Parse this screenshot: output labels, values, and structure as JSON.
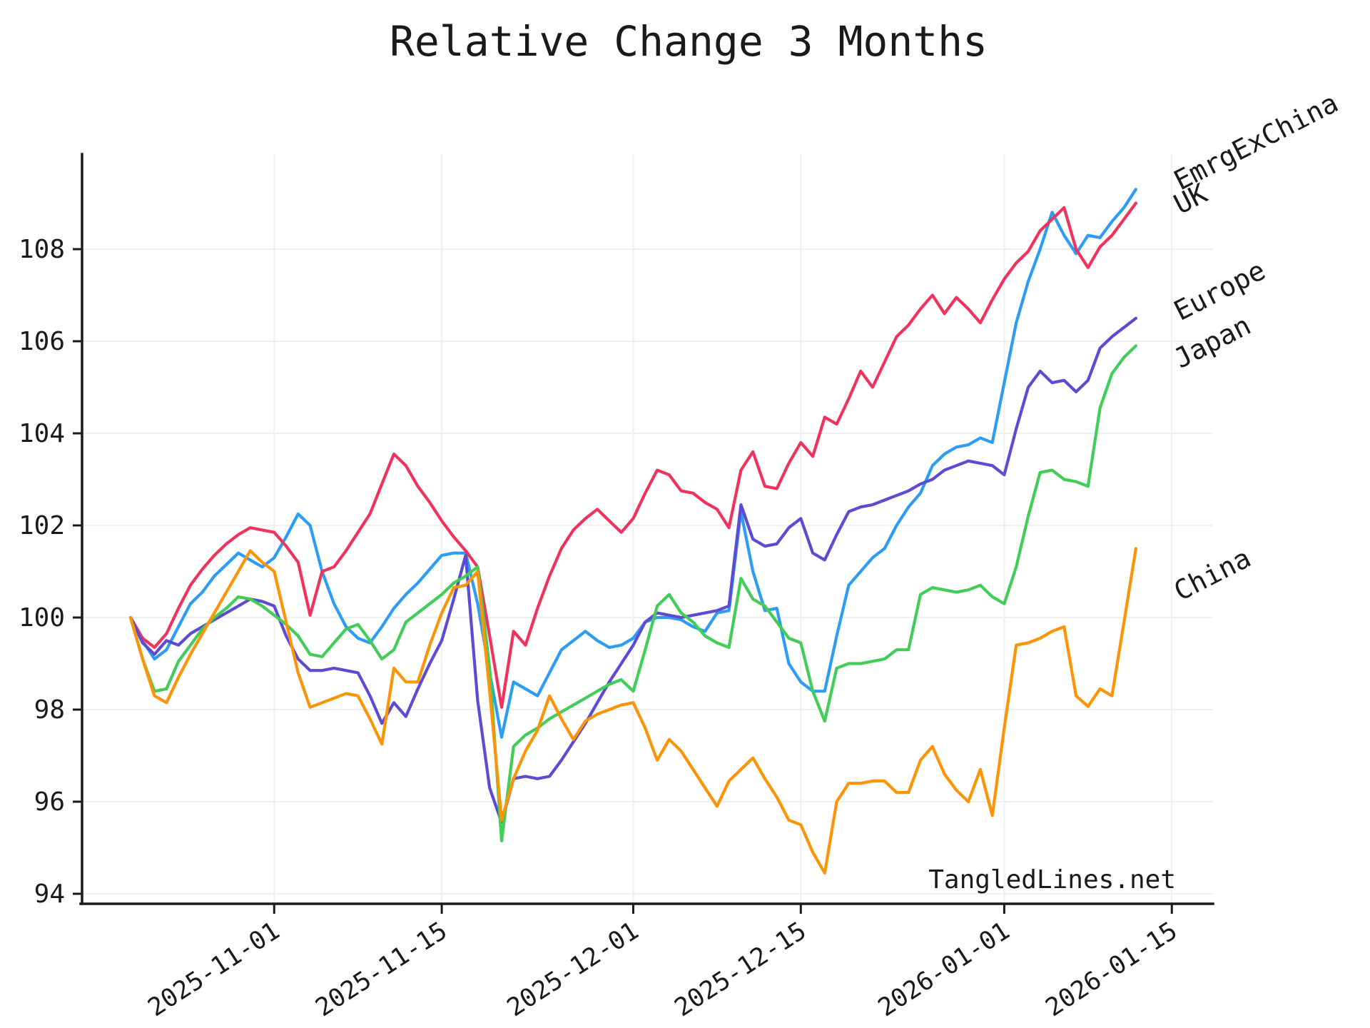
{
  "title": "Relative Change 3 Months",
  "watermark": "TangledLines.net",
  "chart_data": {
    "type": "line",
    "title": "Relative Change 3 Months",
    "xlabel": "",
    "ylabel": "",
    "grid": true,
    "legend_position": "labels-at-line-ends-right",
    "x_axis": {
      "start_date": "2025-10-20",
      "unit": "calendar-days",
      "tick_labels": [
        "2025-11-01",
        "2025-11-15",
        "2025-12-01",
        "2025-12-15",
        "2026-01-01",
        "2026-01-15"
      ],
      "tick_day_index": [
        12,
        26,
        42,
        56,
        73,
        87
      ]
    },
    "y_axis": {
      "ticks": [
        94,
        96,
        98,
        100,
        102,
        104,
        106,
        108
      ],
      "range": [
        93.74,
        110.06
      ]
    },
    "series": [
      {
        "name": "EmrgExChina",
        "color": "#2D9CF4",
        "values": [
          100.0,
          99.5,
          99.1,
          99.3,
          99.8,
          100.3,
          100.55,
          100.9,
          101.15,
          101.4,
          101.25,
          101.1,
          101.3,
          101.75,
          102.25,
          102.0,
          101.0,
          100.3,
          99.8,
          99.55,
          99.45,
          99.8,
          100.2,
          100.5,
          100.75,
          101.05,
          101.35,
          101.4,
          101.4,
          100.3,
          98.8,
          97.4,
          98.6,
          98.45,
          98.3,
          98.8,
          99.3,
          99.5,
          99.7,
          99.5,
          99.35,
          99.4,
          99.55,
          99.9,
          100.0,
          100.0,
          99.95,
          99.8,
          99.7,
          100.1,
          100.15,
          102.3,
          101.0,
          100.15,
          100.2,
          99.0,
          98.6,
          98.4,
          98.4,
          99.6,
          100.7,
          101.0,
          101.3,
          101.5,
          102.0,
          102.4,
          102.7,
          103.3,
          103.55,
          103.7,
          103.75,
          103.9,
          103.8,
          105.1,
          106.4,
          107.3,
          108.0,
          108.8,
          108.3,
          107.9,
          108.3,
          108.25,
          108.6,
          108.9,
          109.3
        ]
      },
      {
        "name": "UK",
        "color": "#F0335D",
        "values": [
          100.0,
          99.55,
          99.35,
          99.65,
          100.2,
          100.7,
          101.05,
          101.35,
          101.6,
          101.8,
          101.95,
          101.9,
          101.85,
          101.55,
          101.2,
          100.05,
          101.0,
          101.1,
          101.45,
          101.85,
          102.25,
          102.9,
          103.55,
          103.3,
          102.85,
          102.5,
          102.1,
          101.75,
          101.45,
          101.1,
          99.6,
          98.05,
          99.7,
          99.4,
          100.2,
          100.9,
          101.5,
          101.9,
          102.15,
          102.35,
          102.1,
          101.85,
          102.15,
          102.7,
          103.2,
          103.1,
          102.75,
          102.7,
          102.5,
          102.35,
          101.95,
          103.2,
          103.6,
          102.85,
          102.8,
          103.35,
          103.8,
          103.5,
          104.35,
          104.2,
          104.75,
          105.35,
          105.0,
          105.55,
          106.1,
          106.35,
          106.7,
          107.0,
          106.6,
          106.95,
          106.7,
          106.4,
          106.9,
          107.35,
          107.7,
          107.95,
          108.4,
          108.65,
          108.9,
          108.0,
          107.6,
          108.05,
          108.3,
          108.65,
          109.0
        ]
      },
      {
        "name": "Europe",
        "color": "#5C4BD3",
        "values": [
          100.0,
          99.45,
          99.2,
          99.5,
          99.4,
          99.65,
          99.8,
          99.95,
          100.1,
          100.25,
          100.4,
          100.35,
          100.25,
          99.6,
          99.1,
          98.85,
          98.85,
          98.9,
          98.85,
          98.8,
          98.3,
          97.7,
          98.15,
          97.85,
          98.45,
          99.0,
          99.5,
          100.4,
          101.35,
          98.2,
          96.3,
          95.55,
          96.5,
          96.55,
          96.5,
          96.55,
          96.9,
          97.3,
          97.7,
          98.15,
          98.6,
          99.0,
          99.4,
          99.9,
          100.1,
          100.05,
          100.0,
          100.05,
          100.1,
          100.15,
          100.25,
          102.45,
          101.7,
          101.55,
          101.6,
          101.95,
          102.15,
          101.4,
          101.25,
          101.8,
          102.3,
          102.4,
          102.45,
          102.55,
          102.65,
          102.75,
          102.9,
          103.0,
          103.2,
          103.3,
          103.4,
          103.35,
          103.3,
          103.1,
          104.1,
          105.0,
          105.35,
          105.1,
          105.15,
          104.9,
          105.15,
          105.85,
          106.1,
          106.3,
          106.5
        ]
      },
      {
        "name": "Japan",
        "color": "#42CC58",
        "values": [
          100.0,
          99.1,
          98.4,
          98.45,
          99.05,
          99.4,
          99.75,
          100.0,
          100.2,
          100.45,
          100.4,
          100.25,
          100.05,
          99.85,
          99.6,
          99.2,
          99.15,
          99.45,
          99.75,
          99.85,
          99.5,
          99.1,
          99.3,
          99.9,
          100.1,
          100.3,
          100.5,
          100.75,
          100.9,
          101.1,
          98.9,
          95.15,
          97.2,
          97.45,
          97.6,
          97.8,
          97.95,
          98.1,
          98.25,
          98.4,
          98.55,
          98.65,
          98.4,
          99.3,
          100.25,
          100.5,
          100.1,
          99.9,
          99.6,
          99.45,
          99.35,
          100.85,
          100.4,
          100.25,
          99.9,
          99.55,
          99.45,
          98.4,
          97.75,
          98.9,
          99.0,
          99.0,
          99.05,
          99.1,
          99.3,
          99.3,
          100.5,
          100.65,
          100.6,
          100.55,
          100.6,
          100.7,
          100.45,
          100.3,
          101.1,
          102.2,
          103.15,
          103.2,
          103.0,
          102.95,
          102.85,
          104.55,
          105.3,
          105.65,
          105.9
        ]
      },
      {
        "name": "China",
        "color": "#FB9407",
        "values": [
          100.0,
          99.1,
          98.3,
          98.15,
          98.7,
          99.2,
          99.65,
          100.1,
          100.55,
          101.0,
          101.45,
          101.2,
          101.0,
          99.9,
          98.8,
          98.05,
          98.15,
          98.25,
          98.35,
          98.3,
          97.8,
          97.25,
          98.9,
          98.6,
          98.6,
          99.4,
          100.1,
          100.65,
          100.7,
          101.0,
          98.4,
          95.6,
          96.5,
          97.1,
          97.55,
          98.3,
          97.8,
          97.35,
          97.75,
          97.9,
          98.0,
          98.1,
          98.15,
          97.6,
          96.9,
          97.35,
          97.1,
          96.7,
          96.3,
          95.9,
          96.45,
          96.7,
          96.95,
          96.5,
          96.1,
          95.6,
          95.5,
          94.9,
          94.45,
          96.0,
          96.4,
          96.4,
          96.45,
          96.45,
          96.2,
          96.2,
          96.9,
          97.2,
          96.6,
          96.25,
          96.0,
          96.7,
          95.7,
          97.6,
          99.4,
          99.45,
          99.55,
          99.7,
          99.8,
          98.3,
          98.07,
          98.45,
          98.3,
          99.9,
          101.5
        ]
      }
    ]
  }
}
